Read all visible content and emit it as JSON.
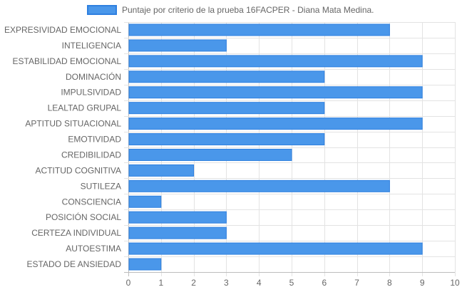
{
  "chart_data": {
    "type": "bar",
    "orientation": "horizontal",
    "categories": [
      "EXPRESIVIDAD EMOCIONAL",
      "INTELIGENCIA",
      "ESTABILIDAD EMOCIONAL",
      "DOMINACIÓN",
      "IMPULSIVIDAD",
      "LEALTAD GRUPAL",
      "APTITUD SITUACIONAL",
      "EMOTIVIDAD",
      "CREDIBILIDAD",
      "ACTITUD COGNITIVA",
      "SUTILEZA",
      "CONSCIENCIA",
      "POSICIÓN SOCIAL",
      "CERTEZA INDIVIDUAL",
      "AUTOESTIMA",
      "ESTADO DE ANSIEDAD"
    ],
    "series": [
      {
        "name": "Puntaje por criterio de la prueba 16FACPER - Diana Mata Medina.",
        "values": [
          8,
          3,
          9,
          6,
          9,
          6,
          9,
          6,
          5,
          2,
          8,
          1,
          3,
          3,
          9,
          1
        ]
      }
    ],
    "xlim": [
      0,
      10
    ],
    "x_ticks": [
      "0",
      "1",
      "2",
      "3",
      "4",
      "5",
      "6",
      "7",
      "8",
      "9",
      "10"
    ],
    "grid": true,
    "legend_position": "top",
    "colors": {
      "bar_fill": "#4a97ea",
      "bar_stroke": "#2f80e0",
      "grid": "#e3e3e3",
      "axis": "#bdbdbd",
      "text": "#666666"
    }
  }
}
